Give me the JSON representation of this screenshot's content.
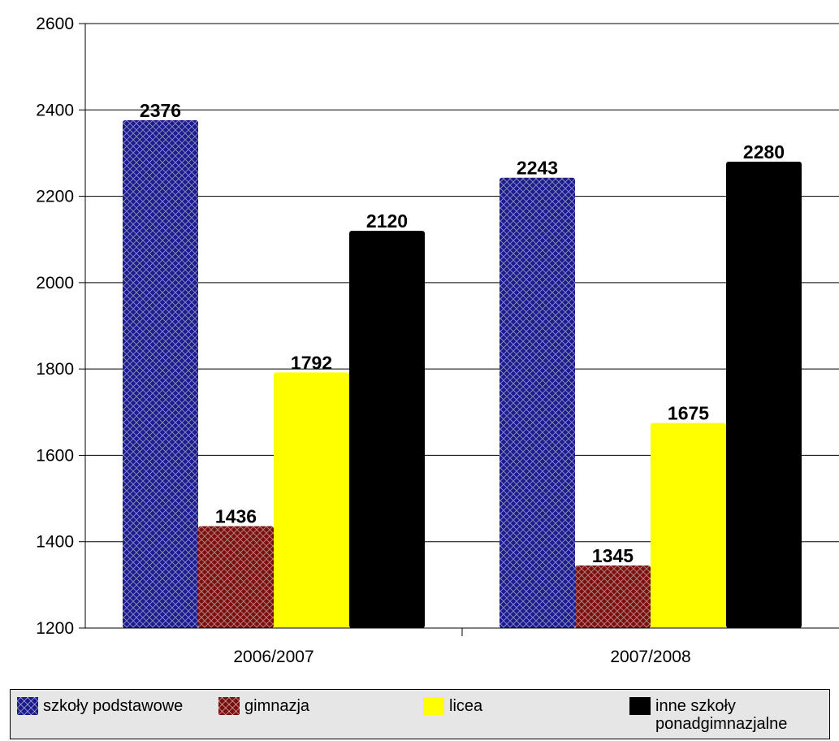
{
  "chart_data": {
    "type": "bar",
    "categories": [
      "2006/2007",
      "2007/2008"
    ],
    "series": [
      {
        "name": "szkoły podstawowe",
        "values": [
          2376,
          2243
        ],
        "color": "#1a1a8c",
        "pattern": "crosshatch"
      },
      {
        "name": "gimnazja",
        "values": [
          1436,
          1345
        ],
        "color": "#7a0f0f",
        "pattern": "crosshatch"
      },
      {
        "name": "licea",
        "values": [
          1792,
          1675
        ],
        "color": "#ffff00",
        "pattern": "none"
      },
      {
        "name": "inne szkoły ponadgimnazjalne",
        "values": [
          2120,
          2280
        ],
        "color": "#000000",
        "pattern": "none"
      }
    ],
    "data_labels": [
      [
        "2376",
        "2243"
      ],
      [
        "1436",
        "1345"
      ],
      [
        "1792",
        "1675"
      ],
      [
        "2120",
        "2280"
      ]
    ],
    "ylim": [
      1200,
      2600
    ],
    "yticks": [
      1200,
      1400,
      1600,
      1800,
      2000,
      2200,
      2400,
      2600
    ],
    "ytick_labels": [
      "1200",
      "1400",
      "1600",
      "1800",
      "2000",
      "2200",
      "2400",
      "2600"
    ],
    "title": "",
    "xlabel": "",
    "ylabel": "",
    "grid": true,
    "legend_position": "bottom"
  },
  "legend": {
    "items": [
      {
        "label": "szkoły podstawowe",
        "color": "#1a1a8c"
      },
      {
        "label": "gimnazja",
        "color": "#7a0f0f"
      },
      {
        "label": "licea",
        "color": "#ffff00"
      },
      {
        "label": "inne szkoły ponadgimnazjalne",
        "color": "#000000"
      }
    ]
  }
}
